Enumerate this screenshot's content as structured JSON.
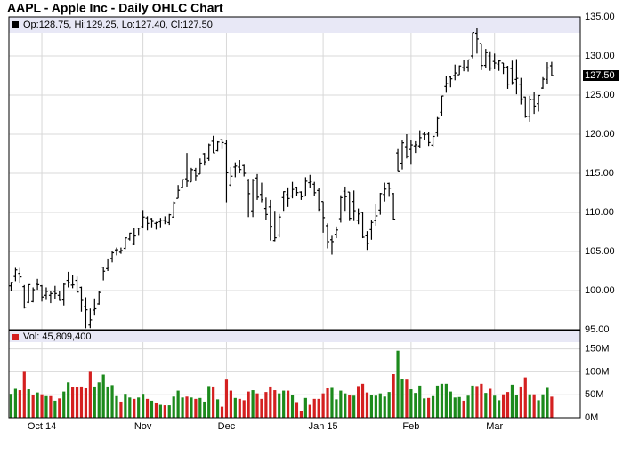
{
  "chart_data": [
    {
      "type": "ohlc",
      "title": "AAPL - Apple Inc - Daily OHLC Chart",
      "info": "Op:128.75, Hi:129.25, Lo:127.40, Cl:127.50",
      "color": "#000000",
      "grid": true,
      "xlim": [
        -0.5,
        129.5
      ],
      "xticks": [
        {
          "value": 7,
          "label": "Oct 14"
        },
        {
          "value": 30,
          "label": "Nov"
        },
        {
          "value": 49,
          "label": "Dec"
        },
        {
          "value": 71,
          "label": "Jan 15"
        },
        {
          "value": 91,
          "label": "Feb"
        },
        {
          "value": 110,
          "label": "Mar"
        }
      ],
      "ylim": [
        95,
        135
      ],
      "yticks": [
        {
          "value": 95,
          "label": "95.00"
        },
        {
          "value": 100,
          "label": "100.00"
        },
        {
          "value": 105,
          "label": "105.00"
        },
        {
          "value": 110,
          "label": "110.00"
        },
        {
          "value": 115,
          "label": "115.00"
        },
        {
          "value": 120,
          "label": "120.00"
        },
        {
          "value": 125,
          "label": "125.00"
        },
        {
          "value": 130,
          "label": "130.00"
        },
        {
          "value": 135,
          "label": "135.00"
        }
      ],
      "last_label": {
        "value": 127.5,
        "label": "127.50"
      },
      "ohlc": [
        [
          100.6,
          101.1,
          99.9,
          101.06
        ],
        [
          101.8,
          102.9,
          101.2,
          102.64
        ],
        [
          102.2,
          102.9,
          101.0,
          101.75
        ],
        [
          100.5,
          100.7,
          97.7,
          97.87
        ],
        [
          98.5,
          100.8,
          98.4,
          100.75
        ],
        [
          98.6,
          100.4,
          98.5,
          100.11
        ],
        [
          100.8,
          101.5,
          100.1,
          100.75
        ],
        [
          100.6,
          100.7,
          98.6,
          99.18
        ],
        [
          99.4,
          100.4,
          98.8,
          99.9
        ],
        [
          99.4,
          100.0,
          98.4,
          99.62
        ],
        [
          99.9,
          100.6,
          98.9,
          99.62
        ],
        [
          99.4,
          100.0,
          98.7,
          98.75
        ],
        [
          98.8,
          101.0,
          98.1,
          100.8
        ],
        [
          101.3,
          102.4,
          100.4,
          101.02
        ],
        [
          100.7,
          102.0,
          100.3,
          100.73
        ],
        [
          101.3,
          101.8,
          99.8,
          99.81
        ],
        [
          100.4,
          100.5,
          97.3,
          98.75
        ],
        [
          97.97,
          99.15,
          95.18,
          97.54
        ],
        [
          95.6,
          97.7,
          95.2,
          96.26
        ],
        [
          97.5,
          99.0,
          96.8,
          97.67
        ],
        [
          98.3,
          99.96,
          98.2,
          99.76
        ],
        [
          103.0,
          103.0,
          101.3,
          102.47
        ],
        [
          102.8,
          104.1,
          102.5,
          102.99
        ],
        [
          104.1,
          105.1,
          103.6,
          104.83
        ],
        [
          105.2,
          105.5,
          104.5,
          105.22
        ],
        [
          104.9,
          105.5,
          104.7,
          105.11
        ],
        [
          105.4,
          106.7,
          105.3,
          106.74
        ],
        [
          106.6,
          107.4,
          106.4,
          107.34
        ],
        [
          105.9,
          108.0,
          105.8,
          106.98
        ],
        [
          108.0,
          108.0,
          107.0,
          108.0
        ],
        [
          108.2,
          110.3,
          108.0,
          109.4
        ],
        [
          109.3,
          109.5,
          107.7,
          108.6
        ],
        [
          109.2,
          109.3,
          108.1,
          108.86
        ],
        [
          108.6,
          108.8,
          107.8,
          108.7
        ],
        [
          108.8,
          109.3,
          108.1,
          109.01
        ],
        [
          109.0,
          109.5,
          108.5,
          108.83
        ],
        [
          108.7,
          109.8,
          108.4,
          109.7
        ],
        [
          109.4,
          111.4,
          109.4,
          111.25
        ],
        [
          111.8,
          113.5,
          111.8,
          112.82
        ],
        [
          113.2,
          114.2,
          113.1,
          114.18
        ],
        [
          114.3,
          117.6,
          113.3,
          113.99
        ],
        [
          113.9,
          115.7,
          113.9,
          115.47
        ],
        [
          115.4,
          115.7,
          114.0,
          114.67
        ],
        [
          114.9,
          116.9,
          114.9,
          116.31
        ],
        [
          117.5,
          117.6,
          116.0,
          116.47
        ],
        [
          116.9,
          118.8,
          116.6,
          118.63
        ],
        [
          119.1,
          119.8,
          117.6,
          117.6
        ],
        [
          117.9,
          119.1,
          117.8,
          119.0
        ],
        [
          119.3,
          119.4,
          118.1,
          118.93
        ],
        [
          118.8,
          119.3,
          111.3,
          115.07
        ],
        [
          113.5,
          115.8,
          113.3,
          114.63
        ],
        [
          115.8,
          116.4,
          114.5,
          115.93
        ],
        [
          115.8,
          116.7,
          115.0,
          115.49
        ],
        [
          115.99,
          116.1,
          114.6,
          115.0
        ],
        [
          114.1,
          114.3,
          109.4,
          112.4
        ],
        [
          110.2,
          114.3,
          109.4,
          114.12
        ],
        [
          114.4,
          114.9,
          111.6,
          111.95
        ],
        [
          112.3,
          113.8,
          111.3,
          111.62
        ],
        [
          110.5,
          111.9,
          109.0,
          109.73
        ],
        [
          110.7,
          111.6,
          106.4,
          108.23
        ],
        [
          106.4,
          110.2,
          106.3,
          106.75
        ],
        [
          107.1,
          109.8,
          106.8,
          109.41
        ],
        [
          111.9,
          112.7,
          110.2,
          112.65
        ],
        [
          112.3,
          113.2,
          110.7,
          111.78
        ],
        [
          112.1,
          113.9,
          111.8,
          112.94
        ],
        [
          113.2,
          113.3,
          112.1,
          112.54
        ],
        [
          112.6,
          112.7,
          111.6,
          112.01
        ],
        [
          112.1,
          114.5,
          112.1,
          113.99
        ],
        [
          113.8,
          114.8,
          113.1,
          113.91
        ],
        [
          113.6,
          113.9,
          112.1,
          112.52
        ],
        [
          112.8,
          113.1,
          110.2,
          110.38
        ],
        [
          111.4,
          111.4,
          107.4,
          109.33
        ],
        [
          108.3,
          108.6,
          105.4,
          106.25
        ],
        [
          106.5,
          107.0,
          104.6,
          106.26
        ],
        [
          107.2,
          108.2,
          106.7,
          107.75
        ],
        [
          109.2,
          112.2,
          108.7,
          111.89
        ],
        [
          112.7,
          113.3,
          110.2,
          112.01
        ],
        [
          112.6,
          112.6,
          108.9,
          109.25
        ],
        [
          111.4,
          112.8,
          108.9,
          110.22
        ],
        [
          109.0,
          110.5,
          108.5,
          109.8
        ],
        [
          110.0,
          110.1,
          106.7,
          106.82
        ],
        [
          107.0,
          107.6,
          105.2,
          105.99
        ],
        [
          107.8,
          108.97,
          106.5,
          108.72
        ],
        [
          108.95,
          111.1,
          108.3,
          109.55
        ],
        [
          110.3,
          112.5,
          109.7,
          112.4
        ],
        [
          112.3,
          113.8,
          111.4,
          112.98
        ],
        [
          113.7,
          113.8,
          112.0,
          113.1
        ],
        [
          112.4,
          112.5,
          109.0,
          109.14
        ],
        [
          117.6,
          118.1,
          115.3,
          115.31
        ],
        [
          116.3,
          119.2,
          115.5,
          118.9
        ],
        [
          118.4,
          120.0,
          116.9,
          117.16
        ],
        [
          118.05,
          119.2,
          116.1,
          118.63
        ],
        [
          118.5,
          119.1,
          117.6,
          118.65
        ],
        [
          118.5,
          120.5,
          118.3,
          119.56
        ],
        [
          120.0,
          120.3,
          119.3,
          119.94
        ],
        [
          120.0,
          120.3,
          118.5,
          118.93
        ],
        [
          118.6,
          119.8,
          118.4,
          119.72
        ],
        [
          120.2,
          122.2,
          119.7,
          122.02
        ],
        [
          122.8,
          124.9,
          122.3,
          124.88
        ],
        [
          126.1,
          127.5,
          125.3,
          126.46
        ],
        [
          127.3,
          127.5,
          126.0,
          127.08
        ],
        [
          127.5,
          128.9,
          126.9,
          127.83
        ],
        [
          127.6,
          128.8,
          127.6,
          128.72
        ],
        [
          128.5,
          129.5,
          128.05,
          128.45
        ],
        [
          128.6,
          129.5,
          128.0,
          129.5
        ],
        [
          130.0,
          133.0,
          129.7,
          133.0
        ],
        [
          132.9,
          133.6,
          130.3,
          132.17
        ],
        [
          131.6,
          131.6,
          128.2,
          128.79
        ],
        [
          128.8,
          130.9,
          128.5,
          130.42
        ],
        [
          130.0,
          130.6,
          128.1,
          128.46
        ],
        [
          129.3,
          130.3,
          128.3,
          129.09
        ],
        [
          128.96,
          129.5,
          128.1,
          129.36
        ],
        [
          129.1,
          129.1,
          127.7,
          128.54
        ],
        [
          128.6,
          128.75,
          125.8,
          126.41
        ],
        [
          128.4,
          129.4,
          126.3,
          126.6
        ],
        [
          127.0,
          129.6,
          125.1,
          127.14
        ],
        [
          126.4,
          127.2,
          123.8,
          124.51
        ],
        [
          124.75,
          124.8,
          122.1,
          122.24
        ],
        [
          122.3,
          124.9,
          121.6,
          124.45
        ],
        [
          124.4,
          125.4,
          122.6,
          123.59
        ],
        [
          123.9,
          124.95,
          122.9,
          124.95
        ],
        [
          125.9,
          127.3,
          125.8,
          127.04
        ],
        [
          127.0,
          129.2,
          126.4,
          128.47
        ],
        [
          128.75,
          129.25,
          127.4,
          127.5
        ]
      ]
    },
    {
      "type": "bar",
      "info": "Vol: 45,809,400",
      "up_color": "#1c8a1c",
      "down_color": "#d42020",
      "ylim": [
        0,
        190
      ],
      "yticks": [
        {
          "value": 0,
          "label": "0M"
        },
        {
          "value": 50,
          "label": "50M"
        },
        {
          "value": 100,
          "label": "100M"
        },
        {
          "value": 150,
          "label": "150M"
        }
      ],
      "values": [
        52,
        63,
        60,
        100,
        62,
        49,
        55,
        51,
        47,
        47,
        37,
        42,
        57,
        77,
        66,
        66,
        68,
        64,
        100,
        68,
        77,
        94,
        68,
        71,
        47,
        35,
        52,
        44,
        41,
        44,
        52,
        41,
        37,
        33,
        28,
        27,
        27,
        46,
        59,
        44,
        46,
        44,
        41,
        43,
        35,
        69,
        68,
        40,
        24,
        83,
        59,
        43,
        41,
        38,
        57,
        60,
        53,
        41,
        56,
        68,
        60,
        53,
        59,
        59,
        50,
        34,
        15,
        43,
        28,
        41,
        41,
        53,
        64,
        65,
        40,
        59,
        53,
        49,
        48,
        69,
        74,
        55,
        50,
        48,
        53,
        46,
        56,
        95,
        146,
        84,
        83,
        62,
        54,
        70,
        42,
        43,
        47,
        70,
        74,
        74,
        57,
        44,
        45,
        37,
        48,
        70,
        69,
        74,
        54,
        63,
        48,
        38,
        51,
        56,
        72,
        50,
        68,
        88,
        51,
        51,
        38,
        51,
        65,
        45.8094
      ]
    }
  ]
}
